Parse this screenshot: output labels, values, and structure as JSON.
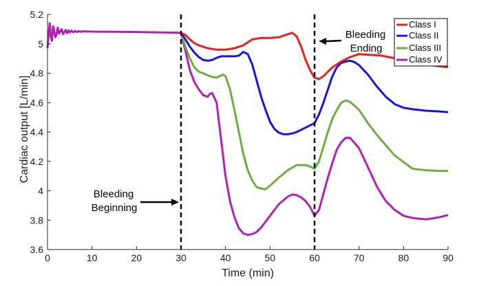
{
  "chart_data": {
    "type": "line",
    "title": "",
    "xlabel": "Time (min)",
    "ylabel": "Cardiac output [L/min]",
    "xlim": [
      0,
      90
    ],
    "ylim": [
      3.6,
      5.2
    ],
    "xticks": [
      0,
      10,
      20,
      30,
      40,
      50,
      60,
      70,
      80,
      90
    ],
    "yticks": [
      3.6,
      3.8,
      4,
      4.2,
      4.4,
      4.6,
      4.8,
      5,
      5.2
    ],
    "ytick_labels": [
      "3.6",
      "3.8",
      "4",
      "4.2",
      "4.4",
      "4.6",
      "4.8",
      "5",
      "5.2"
    ],
    "grid": false,
    "legend_position": "top-right",
    "vlines": [
      {
        "x": 30,
        "style": "dashed",
        "color": "#000000"
      },
      {
        "x": 60,
        "style": "dashed",
        "color": "#000000"
      }
    ],
    "annotations": [
      {
        "lines": [
          "Bleeding",
          "Beginning"
        ],
        "arrow_to_x": 30,
        "arrow_y": 3.84
      },
      {
        "lines": [
          "Bleeding",
          "Ending"
        ],
        "arrow_to_x": 60,
        "arrow_y": 5.01
      }
    ],
    "series": [
      {
        "name": "Class I",
        "color": "#e8201c",
        "x": [
          30,
          31,
          32,
          33,
          34,
          35,
          36,
          37,
          38,
          39,
          40,
          42,
          44,
          46,
          48,
          50,
          52,
          54,
          55,
          56,
          57,
          58,
          59,
          60,
          61,
          62,
          64,
          66,
          68,
          70,
          75,
          80,
          85,
          90
        ],
        "y": [
          5.075,
          5.06,
          5.03,
          5.005,
          4.99,
          4.98,
          4.97,
          4.965,
          4.96,
          4.96,
          4.96,
          4.97,
          4.99,
          5.03,
          5.04,
          5.04,
          5.045,
          5.065,
          5.075,
          5.05,
          4.98,
          4.89,
          4.82,
          4.77,
          4.76,
          4.78,
          4.84,
          4.88,
          4.91,
          4.93,
          4.92,
          4.89,
          4.86,
          4.84
        ]
      },
      {
        "name": "Class II",
        "color": "#1414e0",
        "x": [
          30,
          31,
          32,
          33,
          34,
          35,
          36,
          37,
          38,
          39,
          40,
          42,
          43,
          44,
          45,
          46,
          47,
          48,
          49,
          50,
          51,
          52,
          53,
          54,
          55,
          56,
          58,
          60,
          61,
          62,
          63,
          64,
          65,
          66,
          67,
          68,
          69,
          70,
          72,
          74,
          76,
          78,
          80,
          82,
          85,
          88,
          90
        ],
        "y": [
          5.075,
          5.03,
          4.98,
          4.94,
          4.91,
          4.89,
          4.885,
          4.89,
          4.905,
          4.915,
          4.915,
          4.915,
          4.92,
          4.945,
          4.93,
          4.86,
          4.75,
          4.64,
          4.55,
          4.47,
          4.42,
          4.395,
          4.385,
          4.385,
          4.39,
          4.4,
          4.43,
          4.46,
          4.52,
          4.6,
          4.69,
          4.78,
          4.84,
          4.87,
          4.88,
          4.885,
          4.875,
          4.855,
          4.79,
          4.71,
          4.64,
          4.59,
          4.565,
          4.555,
          4.545,
          4.54,
          4.535
        ]
      },
      {
        "name": "Class III",
        "color": "#6fad3a",
        "x": [
          30,
          31,
          32,
          33,
          34,
          35,
          36,
          37,
          38,
          39,
          39.5,
          40,
          41,
          42,
          43,
          44,
          45,
          46,
          47,
          48,
          49,
          50,
          52,
          54,
          56,
          58,
          59,
          60,
          61,
          62,
          63,
          64,
          65,
          66,
          67,
          68,
          70,
          72,
          74,
          76,
          78,
          80,
          82,
          85,
          88,
          90
        ],
        "y": [
          5.075,
          4.98,
          4.9,
          4.84,
          4.81,
          4.8,
          4.785,
          4.775,
          4.77,
          4.785,
          4.79,
          4.78,
          4.69,
          4.55,
          4.4,
          4.25,
          4.14,
          4.07,
          4.025,
          4.015,
          4.01,
          4.035,
          4.09,
          4.14,
          4.175,
          4.175,
          4.165,
          4.15,
          4.2,
          4.3,
          4.4,
          4.49,
          4.55,
          4.6,
          4.615,
          4.605,
          4.55,
          4.46,
          4.38,
          4.31,
          4.24,
          4.195,
          4.15,
          4.14,
          4.135,
          4.135
        ]
      },
      {
        "name": "Class IV",
        "color": "#b51db5",
        "x": [
          30,
          31,
          32,
          33,
          34,
          35,
          36,
          36.5,
          37,
          38,
          39,
          40,
          41,
          42,
          43,
          44,
          45,
          46,
          47,
          48,
          50,
          52,
          54,
          55,
          56,
          57,
          58,
          59,
          60,
          61,
          62,
          63,
          64,
          65,
          66,
          67,
          68,
          70,
          72,
          74,
          76,
          78,
          80,
          82,
          85,
          88,
          90
        ],
        "y": [
          5.075,
          4.95,
          4.82,
          4.74,
          4.69,
          4.65,
          4.64,
          4.66,
          4.665,
          4.6,
          4.35,
          4.1,
          3.93,
          3.82,
          3.745,
          3.71,
          3.7,
          3.705,
          3.72,
          3.75,
          3.83,
          3.91,
          3.96,
          3.975,
          3.97,
          3.955,
          3.93,
          3.89,
          3.83,
          3.87,
          3.98,
          4.09,
          4.19,
          4.28,
          4.33,
          4.36,
          4.36,
          4.29,
          4.16,
          4.03,
          3.93,
          3.87,
          3.83,
          3.815,
          3.805,
          3.82,
          3.835
        ]
      }
    ],
    "shared_prefix": {
      "note_color": "#b51db5",
      "x": [
        0,
        0.25,
        0.5,
        0.75,
        1,
        1.25,
        1.5,
        1.75,
        2,
        2.3,
        2.6,
        2.9,
        3.2,
        3.5,
        3.8,
        4.1,
        4.4,
        4.7,
        5,
        5.4,
        5.8,
        6.2,
        6.6,
        7,
        7.5,
        8,
        10,
        15,
        20,
        25,
        30
      ],
      "y": [
        4.97,
        5.06,
        5.14,
        5.05,
        5.02,
        5.12,
        5.09,
        5.045,
        5.06,
        5.11,
        5.07,
        5.085,
        5.1,
        5.065,
        5.08,
        5.095,
        5.072,
        5.092,
        5.078,
        5.09,
        5.078,
        5.088,
        5.08,
        5.086,
        5.082,
        5.085,
        5.083,
        5.082,
        5.08,
        5.078,
        5.075
      ]
    }
  }
}
